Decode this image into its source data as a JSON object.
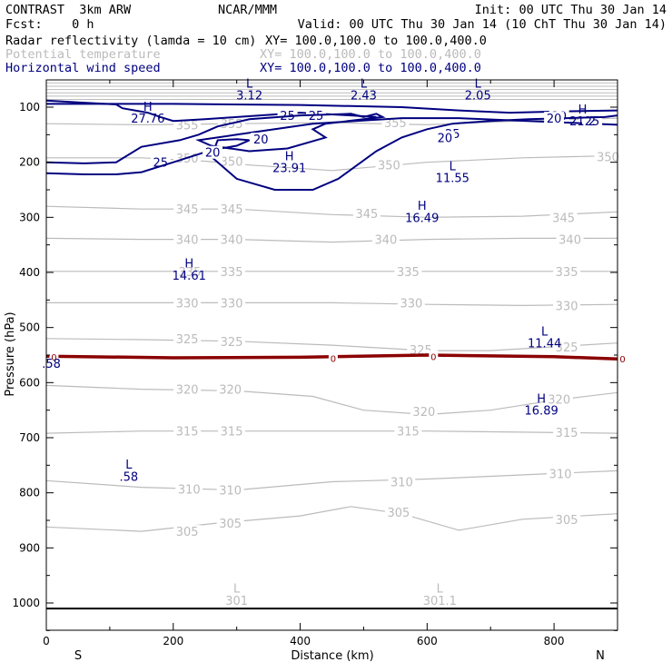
{
  "header": {
    "line1_left": "CONTRAST  3km ARW",
    "line1_center": "NCAR/MMM",
    "line1_right": "Init: 00 UTC Thu 30 Jan 14",
    "line2_left": "Fcst:    0 h",
    "line2_right": "Valid: 00 UTC Thu 30 Jan 14 (10 ChT Thu 30 Jan 14)"
  },
  "legend": [
    {
      "label": "Radar reflectivity (lamda = 10 cm)",
      "xy": "XY= 100.0,100.0 to 100.0,400.0",
      "color": "#000000"
    },
    {
      "label": "Potential temperature",
      "xy": "XY= 100.0,100.0 to 100.0,400.0",
      "color": "#bbbbbb"
    },
    {
      "label": "Horizontal wind speed",
      "xy": "XY= 100.0,100.0 to 100.0,400.0",
      "color": "#000080"
    }
  ],
  "chart_data": {
    "type": "contour",
    "xlabel": "Distance (km)",
    "ylabel": "Pressure (hPa)",
    "xlim": [
      0,
      900
    ],
    "ylim": [
      1070,
      50
    ],
    "x_ticks": [
      0,
      200,
      400,
      600,
      800
    ],
    "y_ticks": [
      100,
      200,
      300,
      400,
      500,
      600,
      700,
      800,
      900,
      1000
    ],
    "left_end_label": "S",
    "right_end_label": "N",
    "theta_contours": [
      {
        "label": "305",
        "x": [
          0,
          150,
          270,
          400,
          480,
          560,
          650,
          750,
          900
        ],
        "y": [
          862,
          870,
          855,
          842,
          825,
          838,
          868,
          848,
          838
        ],
        "label_pos": [
          [
            222,
            870
          ],
          [
            290,
            855
          ],
          [
            555,
            835
          ],
          [
            820,
            848
          ]
        ]
      },
      {
        "label": "310",
        "x": [
          0,
          150,
          300,
          450,
          600,
          700,
          800,
          900
        ],
        "y": [
          778,
          790,
          795,
          780,
          775,
          770,
          765,
          760
        ],
        "label_pos": [
          [
            225,
            793
          ],
          [
            290,
            795
          ],
          [
            560,
            780
          ],
          [
            810,
            765
          ]
        ]
      },
      {
        "label": "315",
        "x": [
          0,
          150,
          300,
          450,
          600,
          750,
          900
        ],
        "y": [
          692,
          688,
          688,
          688,
          688,
          690,
          692
        ],
        "label_pos": [
          [
            222,
            688
          ],
          [
            292,
            688
          ],
          [
            570,
            688
          ],
          [
            820,
            690
          ]
        ]
      },
      {
        "label": "320",
        "x": [
          0,
          150,
          300,
          420,
          500,
          600,
          700,
          800,
          900
        ],
        "y": [
          605,
          612,
          615,
          625,
          650,
          658,
          650,
          632,
          618
        ],
        "label_pos": [
          [
            222,
            612
          ],
          [
            290,
            612
          ],
          [
            595,
            652
          ],
          [
            808,
            630
          ]
        ]
      },
      {
        "label": "325",
        "x": [
          0,
          150,
          300,
          450,
          600,
          700,
          800,
          900
        ],
        "y": [
          520,
          522,
          525,
          532,
          542,
          542,
          535,
          528
        ],
        "label_pos": [
          [
            222,
            520
          ],
          [
            292,
            525
          ],
          [
            590,
            540
          ],
          [
            820,
            535
          ]
        ]
      },
      {
        "label": "330",
        "x": [
          0,
          150,
          300,
          450,
          600,
          750,
          900
        ],
        "y": [
          455,
          455,
          455,
          455,
          458,
          460,
          458
        ],
        "label_pos": [
          [
            222,
            455
          ],
          [
            292,
            455
          ],
          [
            575,
            455
          ],
          [
            820,
            460
          ]
        ]
      },
      {
        "label": "335",
        "x": [
          0,
          150,
          300,
          450,
          600,
          750,
          900
        ],
        "y": [
          398,
          398,
          398,
          398,
          398,
          398,
          398
        ],
        "label_pos": [
          [
            226,
            398
          ],
          [
            292,
            398
          ],
          [
            570,
            398
          ],
          [
            820,
            398
          ]
        ]
      },
      {
        "label": "340",
        "x": [
          0,
          150,
          300,
          450,
          600,
          750,
          900
        ],
        "y": [
          338,
          340,
          340,
          345,
          340,
          338,
          338
        ],
        "label_pos": [
          [
            222,
            340
          ],
          [
            292,
            340
          ],
          [
            535,
            340
          ],
          [
            825,
            340
          ]
        ]
      },
      {
        "label": "345",
        "x": [
          0,
          150,
          300,
          450,
          600,
          750,
          900
        ],
        "y": [
          280,
          285,
          285,
          295,
          300,
          298,
          290
        ],
        "label_pos": [
          [
            222,
            285
          ],
          [
            292,
            285
          ],
          [
            505,
            293
          ],
          [
            815,
            300
          ]
        ]
      },
      {
        "label": "350",
        "x": [
          0,
          150,
          250,
          320,
          450,
          600,
          750,
          900
        ],
        "y": [
          192,
          192,
          198,
          205,
          215,
          200,
          192,
          188
        ],
        "label_pos": [
          [
            222,
            192
          ],
          [
            292,
            198
          ],
          [
            540,
            205
          ],
          [
            885,
            190
          ]
        ]
      },
      {
        "label": "355",
        "x": [
          0,
          150,
          300,
          450,
          600,
          750,
          900
        ],
        "y": [
          130,
          132,
          130,
          128,
          132,
          125,
          120
        ],
        "label_pos": [
          [
            222,
            132
          ],
          [
            292,
            130
          ],
          [
            550,
            128
          ]
        ]
      }
    ],
    "wind_contours": [
      {
        "label": "25",
        "x": [
          0,
          60,
          110,
          120,
          160,
          180,
          200,
          250,
          300,
          400,
          480,
          520
        ],
        "y": [
          88,
          92,
          95,
          102,
          110,
          118,
          125,
          122,
          118,
          110,
          115,
          118
        ],
        "label_pos": [
          [
            380,
            115
          ],
          [
            425,
            115
          ]
        ]
      },
      {
        "label": "20",
        "x": [
          0,
          200,
          400,
          560,
          650,
          730,
          800,
          900
        ],
        "y": [
          94,
          94,
          96,
          100,
          106,
          110,
          108,
          106
        ],
        "label_pos": [
          [
            808,
            116
          ],
          [
            855,
            125
          ]
        ]
      },
      {
        "label": "25",
        "x": [
          0,
          60,
          110,
          150,
          210,
          240,
          270,
          320,
          400,
          480,
          500,
          520,
          530,
          500,
          440,
          420,
          440,
          380,
          320,
          260,
          240,
          300,
          420,
          560,
          650,
          900
        ],
        "y": [
          200,
          202,
          200,
          172,
          160,
          150,
          135,
          122,
          115,
          112,
          118,
          112,
          118,
          122,
          130,
          140,
          155,
          175,
          180,
          170,
          160,
          150,
          130,
          120,
          120,
          132
        ],
        "label_pos": [
          [
            180,
            200
          ],
          [
            335,
            160
          ],
          [
            640,
            148
          ],
          [
            860,
            125
          ]
        ]
      },
      {
        "label": "20",
        "x": [
          0,
          60,
          110,
          150,
          200,
          260,
          300,
          320,
          300,
          270,
          260,
          300,
          360,
          420,
          460,
          520,
          560,
          600,
          640,
          700,
          760,
          820,
          880,
          900
        ],
        "y": [
          220,
          222,
          222,
          218,
          200,
          178,
          170,
          160,
          158,
          160,
          190,
          230,
          250,
          250,
          230,
          180,
          155,
          140,
          130,
          125,
          122,
          120,
          118,
          115
        ],
        "label_pos": [
          [
            262,
            182
          ],
          [
            338,
            158
          ],
          [
            628,
            155
          ],
          [
            800,
            120
          ]
        ]
      }
    ],
    "reflectivity_contour": {
      "label": "0",
      "x": [
        0,
        200,
        400,
        600,
        800,
        900
      ],
      "y": [
        552,
        555,
        554,
        550,
        553,
        557
      ],
      "label_pos": [
        [
          12,
          552
        ],
        [
          452,
          554
        ],
        [
          610,
          551
        ],
        [
          908,
          555
        ]
      ]
    },
    "top_levels": [
      56,
      62,
      68,
      74,
      80,
      86
    ],
    "surface_level": 1010,
    "extrema": [
      {
        "symbol": "L",
        "value": "3.12",
        "x": 320,
        "y": 78,
        "color": "#000080"
      },
      {
        "symbol": "L",
        "value": "2.43",
        "x": 500,
        "y": 78,
        "color": "#000080"
      },
      {
        "symbol": "L",
        "value": "2.05",
        "x": 680,
        "y": 78,
        "color": "#000080"
      },
      {
        "symbol": "H",
        "value": "27.76",
        "x": 160,
        "y": 120,
        "color": "#000080"
      },
      {
        "symbol": "H",
        "value": "21.2",
        "x": 845,
        "y": 125,
        "color": "#000080"
      },
      {
        "symbol": "H",
        "value": "23.91",
        "x": 383,
        "y": 210,
        "color": "#000080"
      },
      {
        "symbol": "L",
        "value": "11.55",
        "x": 640,
        "y": 228,
        "color": "#000080"
      },
      {
        "symbol": "H",
        "value": "16.49",
        "x": 592,
        "y": 300,
        "color": "#000080"
      },
      {
        "symbol": "H",
        "value": "14.61",
        "x": 225,
        "y": 405,
        "color": "#000080"
      },
      {
        "symbol": "L",
        "value": "11.44",
        "x": 785,
        "y": 528,
        "color": "#000080"
      },
      {
        "symbol": "H",
        "value": "16.89",
        "x": 780,
        "y": 650,
        "color": "#000080"
      },
      {
        "symbol": "L",
        "value": ".58",
        "x": 130,
        "y": 770,
        "color": "#000080"
      },
      {
        "symbol": "",
        "value": ".58",
        "x": 8,
        "y": 565,
        "color": "#000080"
      },
      {
        "symbol": "L",
        "value": "301",
        "x": 300,
        "y": 995,
        "color": "#bbbbbb"
      },
      {
        "symbol": "L",
        "value": "301.1",
        "x": 620,
        "y": 995,
        "color": "#bbbbbb"
      }
    ]
  }
}
